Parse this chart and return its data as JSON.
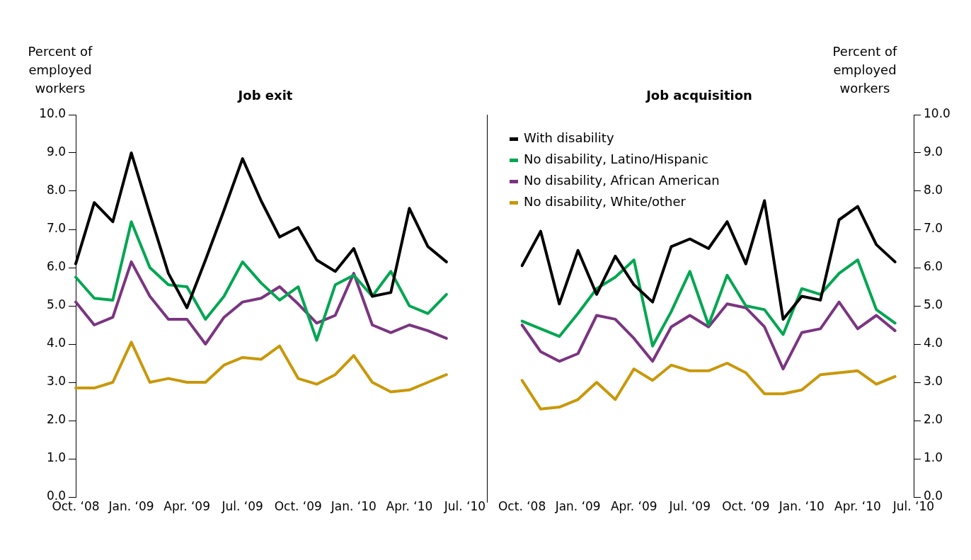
{
  "chart_data": [
    {
      "type": "line",
      "title": "Job exit",
      "ylabel": "Percent of employed workers",
      "categories": [
        "Oct. ‘08",
        null,
        null,
        "Jan. ‘09",
        null,
        null,
        "Apr. ‘09",
        null,
        null,
        "Jul. ‘09",
        null,
        null,
        "Oct. ‘09",
        null,
        null,
        "Jan. ‘10",
        null,
        null,
        "Apr. ‘10",
        null,
        null,
        "Jul. ‘10"
      ],
      "series": [
        {
          "color": "#000000",
          "values": [
            6.1,
            7.7,
            7.2,
            9.0,
            7.4,
            5.85,
            4.95,
            6.2,
            7.5,
            8.85,
            7.75,
            6.8,
            7.05,
            6.2,
            5.9,
            6.5,
            5.25,
            5.35,
            7.55,
            6.55,
            6.15,
            null
          ]
        },
        {
          "color": "#00a651",
          "values": [
            5.75,
            5.2,
            5.15,
            7.2,
            6.0,
            5.55,
            5.5,
            4.65,
            5.25,
            6.15,
            5.6,
            5.15,
            5.5,
            4.1,
            5.55,
            5.8,
            5.25,
            5.9,
            5.0,
            4.8,
            5.3,
            null
          ]
        },
        {
          "color": "#7b3581",
          "values": [
            5.1,
            4.5,
            4.7,
            6.15,
            5.25,
            4.65,
            4.65,
            4.0,
            4.7,
            5.1,
            5.2,
            5.5,
            5.05,
            4.55,
            4.75,
            5.85,
            4.5,
            4.3,
            4.5,
            4.35,
            4.15,
            null
          ]
        },
        {
          "color": "#c9980a",
          "values": [
            2.85,
            2.85,
            3.0,
            4.05,
            3.0,
            3.1,
            3.0,
            3.0,
            3.45,
            3.65,
            3.6,
            3.95,
            3.1,
            2.95,
            3.2,
            3.7,
            3.0,
            2.75,
            2.8,
            3.0,
            3.2,
            null
          ]
        }
      ],
      "ylim": [
        0,
        10
      ],
      "yticks": [
        {
          "value": 0,
          "label": "0.0"
        },
        {
          "value": 1,
          "label": "1.0"
        },
        {
          "value": 2,
          "label": "2.0"
        },
        {
          "value": 3,
          "label": "3.0"
        },
        {
          "value": 4,
          "label": "4.0"
        },
        {
          "value": 5,
          "label": "5.0"
        },
        {
          "value": 6,
          "label": "6.0"
        },
        {
          "value": 7,
          "label": "7.0"
        },
        {
          "value": 8,
          "label": "8.0"
        },
        {
          "value": 9,
          "label": "9.0"
        },
        {
          "value": 10,
          "label": "10.0"
        }
      ],
      "grid": false,
      "legend": false,
      "marker": "none"
    },
    {
      "type": "line",
      "title": "Job acquisition",
      "ylabel": "Percent of employed workers",
      "categories": [
        "Oct. ‘08",
        null,
        null,
        "Jan. ‘09",
        null,
        null,
        "Apr. ‘09",
        null,
        null,
        "Jul. ‘09",
        null,
        null,
        "Oct. ‘09",
        null,
        null,
        "Jan. ‘10",
        null,
        null,
        "Apr. ‘10",
        null,
        null,
        "Jul. ‘10"
      ],
      "series": [
        {
          "name": "With disability",
          "color": "#000000",
          "values": [
            6.05,
            6.95,
            5.05,
            6.45,
            5.3,
            6.3,
            5.55,
            5.1,
            6.55,
            6.75,
            6.5,
            7.2,
            6.1,
            7.75,
            4.65,
            5.25,
            5.15,
            7.25,
            7.6,
            6.6,
            6.15,
            null
          ]
        },
        {
          "name": "No disability, Latino/Hispanic",
          "color": "#00a651",
          "values": [
            4.6,
            4.4,
            4.2,
            4.8,
            5.45,
            5.75,
            6.2,
            3.95,
            4.85,
            5.9,
            4.5,
            5.8,
            5.0,
            4.9,
            4.25,
            5.45,
            5.3,
            5.85,
            6.2,
            4.9,
            4.55,
            null
          ]
        },
        {
          "name": "No disability, African American",
          "color": "#7b3581",
          "values": [
            4.5,
            3.8,
            3.55,
            3.75,
            4.75,
            4.65,
            4.15,
            3.55,
            4.45,
            4.75,
            4.45,
            5.05,
            4.95,
            4.45,
            3.35,
            4.3,
            4.4,
            5.1,
            4.4,
            4.75,
            4.35,
            null
          ]
        },
        {
          "name": "No disability, White/other",
          "color": "#c9980a",
          "values": [
            3.05,
            2.3,
            2.35,
            2.55,
            3.0,
            2.55,
            3.35,
            3.05,
            3.45,
            3.3,
            3.3,
            3.5,
            3.25,
            2.7,
            2.7,
            2.8,
            3.2,
            3.25,
            3.3,
            2.95,
            3.15,
            null
          ]
        }
      ],
      "ylim": [
        0,
        10
      ],
      "yticks": [
        {
          "value": 0,
          "label": "0.0"
        },
        {
          "value": 1,
          "label": "1.0"
        },
        {
          "value": 2,
          "label": "2.0"
        },
        {
          "value": 3,
          "label": "3.0"
        },
        {
          "value": 4,
          "label": "4.0"
        },
        {
          "value": 5,
          "label": "5.0"
        },
        {
          "value": 6,
          "label": "6.0"
        },
        {
          "value": 7,
          "label": "7.0"
        },
        {
          "value": 8,
          "label": "8.0"
        },
        {
          "value": 9,
          "label": "9.0"
        },
        {
          "value": 10,
          "label": "10.0"
        }
      ],
      "grid": false,
      "legend": "top left",
      "marker": "none"
    }
  ]
}
